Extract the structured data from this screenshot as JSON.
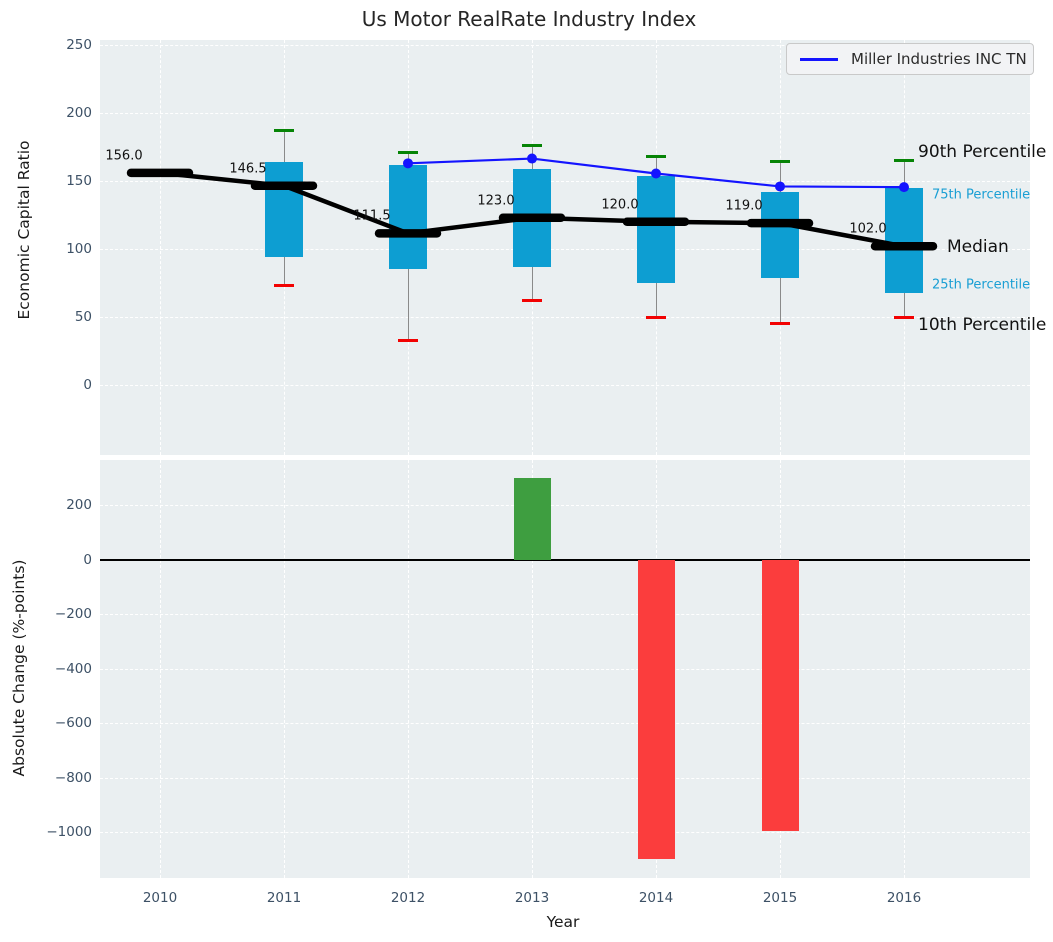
{
  "figure": {
    "title": "Us Motor RealRate Industry Index",
    "legend_label": "Miller Industries INC TN",
    "top_ylabel": "Economic Capital Ratio",
    "bottom_ylabel": "Absolute Change (%-points)",
    "xlabel": "Year"
  },
  "right_labels": {
    "p90": "90th Percentile",
    "p75": "75th Percentile",
    "median": "Median",
    "p25": "25th Percentile",
    "p10": "10th Percentile"
  },
  "colors": {
    "plot_background": "#eaeff1",
    "grid": "#ffffff",
    "tick_text": "#3d5166",
    "box_fill": "#0d9ed2",
    "p90_cap": "#068406",
    "p10_cap": "#f20202",
    "median_line": "#000000",
    "miller_line": "#1414ff",
    "positive_bar": "#3e9e40",
    "negative_bar": "#fb3d3d",
    "percentile_label_accent": "#1a9fd4"
  },
  "chart_data": [
    {
      "type": "box-percentile",
      "title": "Us Motor RealRate Industry Index",
      "ylabel": "Economic Capital Ratio",
      "x": [
        2010,
        2011,
        2012,
        2013,
        2014,
        2015,
        2016
      ],
      "yticks": [
        250,
        200,
        150,
        100,
        50,
        0
      ],
      "ylim": [
        -52,
        253
      ],
      "grid": true,
      "legend_position": "upper right",
      "series": [
        {
          "name": "Median",
          "values": [
            156.0,
            146.5,
            111.5,
            123.0,
            120.0,
            119.0,
            102.0
          ]
        },
        {
          "name": "75th Percentile",
          "values": [
            null,
            164,
            162,
            159,
            154,
            142,
            145
          ]
        },
        {
          "name": "25th Percentile",
          "values": [
            null,
            94,
            85,
            87,
            75,
            79,
            68
          ]
        },
        {
          "name": "90th Percentile",
          "values": [
            null,
            187,
            171,
            176,
            168,
            164,
            165
          ]
        },
        {
          "name": "10th Percentile",
          "values": [
            null,
            73,
            33,
            62,
            50,
            45,
            50
          ]
        },
        {
          "name": "Miller Industries INC TN",
          "values": [
            null,
            null,
            163,
            166.5,
            155.5,
            146,
            145.5
          ]
        }
      ],
      "annotations": [
        "156.0",
        "146.5",
        "111.5",
        "123.0",
        "120.0",
        "119.0",
        "102.0"
      ]
    },
    {
      "type": "bar",
      "categories": [
        2010,
        2011,
        2012,
        2013,
        2014,
        2015,
        2016
      ],
      "values": [
        0,
        0,
        0,
        300,
        -1100,
        -995,
        0
      ],
      "ylabel": "Absolute Change (%-points)",
      "xlabel": "Year",
      "yticks": [
        200,
        0,
        -200,
        -400,
        -600,
        -800,
        -1000
      ],
      "ylim": [
        -1165,
        365
      ],
      "grid": true
    }
  ]
}
